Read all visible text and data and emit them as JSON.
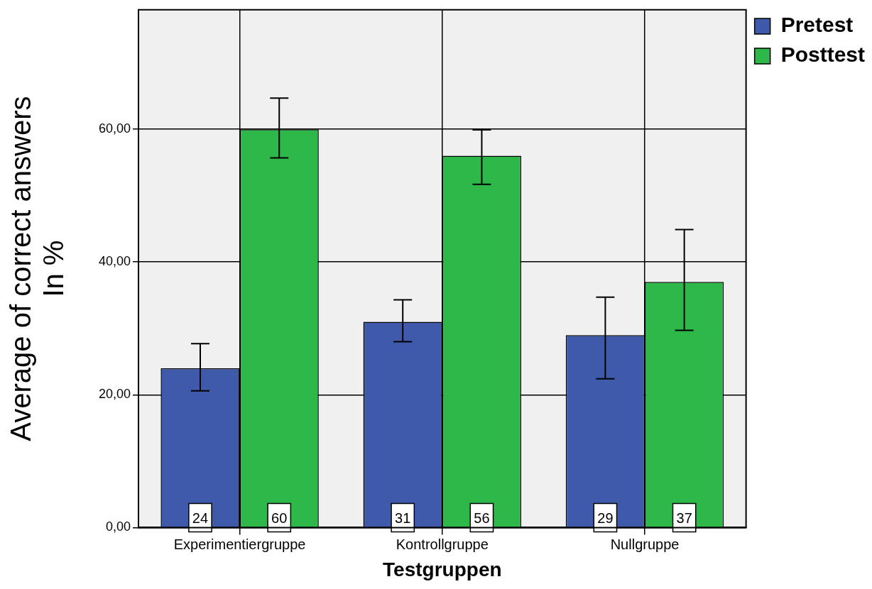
{
  "chart_data": {
    "type": "bar",
    "xlabel": "Testgruppen",
    "ylabel": "Average of correct answers\nIn %",
    "categories": [
      "Experimentiergruppe",
      "Kontrollgruppe",
      "Nullgruppe"
    ],
    "series": [
      {
        "name": "Pretest",
        "color": "#3f59ab",
        "values": [
          24,
          31,
          29
        ],
        "errors": [
          [
            20.6,
            27.7
          ],
          [
            28.0,
            34.3
          ],
          [
            22.4,
            34.7
          ]
        ]
      },
      {
        "name": "Posttest",
        "color": "#2fb84a",
        "values": [
          60,
          56,
          37
        ],
        "errors": [
          [
            55.7,
            64.7
          ],
          [
            51.7,
            59.9
          ],
          [
            29.7,
            44.9
          ]
        ]
      }
    ],
    "ylim": [
      0,
      78
    ],
    "yticks": [
      {
        "value": 0,
        "label": "0,00"
      },
      {
        "value": 20,
        "label": "20,00"
      },
      {
        "value": 40,
        "label": "40,00"
      },
      {
        "value": 60,
        "label": "60,00"
      }
    ],
    "grid": true,
    "legend": "top right",
    "data_labels": true
  }
}
